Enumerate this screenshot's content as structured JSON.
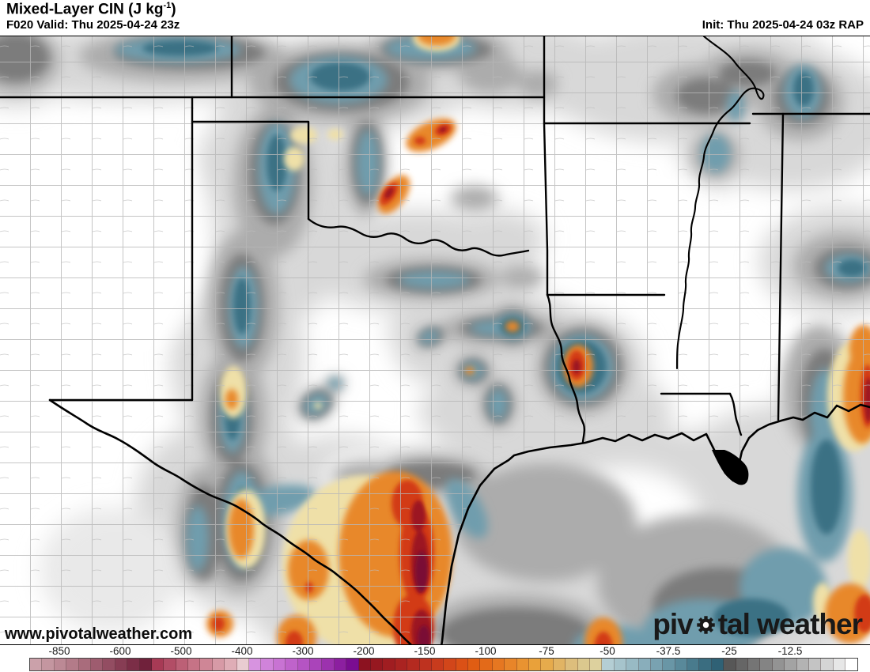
{
  "header": {
    "title_prefix": "Mixed-Layer CIN (J kg",
    "title_sup": "-1",
    "title_suffix": ")",
    "valid_label": "F020 Valid: Thu 2025-04-24 23z",
    "init_label": "Init: Thu 2025-04-24 03z RAP"
  },
  "map": {
    "watermark": "www.pivotalweather.com",
    "logo_part1": "piv",
    "logo_part2": "tal weather",
    "border_color": "#000000",
    "county_line_color": "#b6b6b6"
  },
  "colorbar": {
    "tick_values": [
      -850,
      -600,
      -500,
      -400,
      -300,
      -200,
      -150,
      -100,
      -75,
      -50,
      -37.5,
      -25,
      -12.5
    ],
    "labels": [
      {
        "text": "-850",
        "pct": 6.82
      },
      {
        "text": "-600",
        "pct": 13.82
      },
      {
        "text": "-500",
        "pct": 20.82
      },
      {
        "text": "-400",
        "pct": 27.82
      },
      {
        "text": "-300",
        "pct": 34.82
      },
      {
        "text": "-200",
        "pct": 41.82
      },
      {
        "text": "-150",
        "pct": 48.82
      },
      {
        "text": "-100",
        "pct": 55.82
      },
      {
        "text": "-75",
        "pct": 62.82
      },
      {
        "text": "-50",
        "pct": 69.82
      },
      {
        "text": "-37.5",
        "pct": 76.82
      },
      {
        "text": "-25",
        "pct": 83.82
      },
      {
        "text": "-12.5",
        "pct": 90.82
      }
    ],
    "cells": [
      "#cba1aa",
      "#c496a0",
      "#bc8995",
      "#b37b89",
      "#a96c7c",
      "#9e5c6f",
      "#934d62",
      "#873d54",
      "#7b2e47",
      "#70213b",
      "#a73a55",
      "#b24d66",
      "#bc6076",
      "#c67386",
      "#cf8696",
      "#d79aa6",
      "#dfadb6",
      "#e9ccd1",
      "#d793e0",
      "#d083da",
      "#c873d3",
      "#bf63cb",
      "#b554c3",
      "#aa44ba",
      "#9c32ae",
      "#8c1fa0",
      "#7a0d91",
      "#8c1220",
      "#961820",
      "#a01d21",
      "#aa2321",
      "#b42a20",
      "#be321f",
      "#c83b1d",
      "#d2461a",
      "#db5116",
      "#e05d13",
      "#e36a19",
      "#e67721",
      "#e88529",
      "#e99331",
      "#e9a13a",
      "#e6ab4c",
      "#e1b464",
      "#ddbe7c",
      "#dbc88e",
      "#ddd19e",
      "#b4ced4",
      "#a6c4cc",
      "#98bac4",
      "#89aebb",
      "#79a2b1",
      "#6996a6",
      "#59899a",
      "#497b8d",
      "#3a6d80",
      "#2f6175",
      "#575757",
      "#666666",
      "#757575",
      "#848484",
      "#939393",
      "#a3a3a3",
      "#b3b3b3",
      "#c4c4c4",
      "#d5d5d5",
      "#e7e7e7",
      "#ffffff"
    ]
  }
}
